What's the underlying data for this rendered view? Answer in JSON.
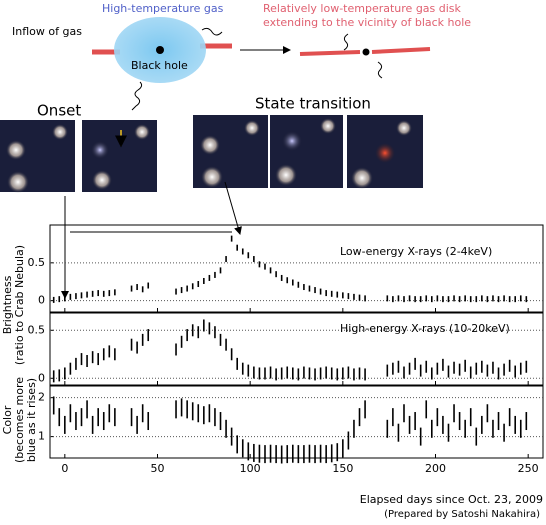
{
  "diagram": {
    "inflow_label": "Inflow of gas",
    "hot_gas_label": "High-temperature gas",
    "black_hole_label": "Black hole",
    "disk_label": [
      "Relatively low-temperature gas disk",
      "extending to the vicinity of black hole"
    ],
    "onset_label": "Onset",
    "transition_label": "State transition"
  },
  "chart_data": [
    {
      "type": "scatter",
      "ylabel": [
        "Brightness",
        "(ratio to Crab Nebula)"
      ],
      "annotation": "Low-energy X-rays  (2-4keV)",
      "xlim": [
        -8,
        258
      ],
      "ylim": [
        -0.15,
        1.0
      ],
      "yticks": [
        0,
        0.5
      ],
      "grid": true,
      "color": "#000000",
      "x": [
        -6,
        -3,
        0,
        3,
        6,
        9,
        12,
        15,
        18,
        21,
        24,
        27,
        36,
        39,
        42,
        45,
        60,
        63,
        66,
        69,
        72,
        75,
        78,
        81,
        84,
        87,
        90,
        93,
        96,
        99,
        102,
        105,
        108,
        111,
        114,
        117,
        120,
        123,
        126,
        129,
        132,
        135,
        138,
        141,
        144,
        147,
        150,
        153,
        156,
        159,
        162,
        174,
        177,
        180,
        183,
        186,
        189,
        192,
        195,
        198,
        201,
        204,
        207,
        210,
        213,
        216,
        219,
        222,
        225,
        228,
        231,
        234,
        237,
        240,
        243,
        246,
        249
      ],
      "values": [
        0.01,
        0.02,
        0.03,
        0.05,
        0.06,
        0.07,
        0.08,
        0.09,
        0.1,
        0.09,
        0.1,
        0.11,
        0.16,
        0.18,
        0.15,
        0.2,
        0.12,
        0.14,
        0.16,
        0.19,
        0.22,
        0.26,
        0.3,
        0.34,
        0.4,
        0.55,
        0.82,
        0.7,
        0.65,
        0.6,
        0.55,
        0.48,
        0.45,
        0.4,
        0.35,
        0.3,
        0.27,
        0.24,
        0.21,
        0.18,
        0.16,
        0.14,
        0.12,
        0.1,
        0.09,
        0.08,
        0.07,
        0.06,
        0.05,
        0.04,
        0.03,
        0.03,
        0.02,
        0.03,
        0.02,
        0.03,
        0.02,
        0.02,
        0.03,
        0.02,
        0.03,
        0.02,
        0.02,
        0.03,
        0.02,
        0.03,
        0.02,
        0.02,
        0.03,
        0.02,
        0.03,
        0.02,
        0.03,
        0.02,
        0.02,
        0.03,
        0.02
      ]
    },
    {
      "type": "scatter",
      "annotation": "High-energy X-rays  (10-20keV)",
      "xlim": [
        -8,
        258
      ],
      "ylim": [
        -0.07,
        0.68
      ],
      "yticks": [
        0,
        0.5
      ],
      "grid": true,
      "color": "#000000",
      "x": [
        -6,
        -3,
        0,
        3,
        6,
        9,
        12,
        15,
        18,
        21,
        24,
        27,
        36,
        39,
        42,
        45,
        60,
        63,
        66,
        69,
        72,
        75,
        78,
        81,
        84,
        87,
        90,
        93,
        96,
        99,
        102,
        105,
        108,
        111,
        114,
        117,
        120,
        123,
        126,
        129,
        132,
        135,
        138,
        141,
        144,
        147,
        150,
        153,
        156,
        159,
        162,
        174,
        177,
        180,
        183,
        186,
        189,
        192,
        195,
        198,
        201,
        204,
        207,
        210,
        213,
        216,
        219,
        222,
        225,
        228,
        231,
        234,
        237,
        240,
        243,
        246,
        249
      ],
      "values": [
        0.02,
        0.03,
        0.05,
        0.1,
        0.15,
        0.2,
        0.18,
        0.22,
        0.2,
        0.25,
        0.28,
        0.25,
        0.35,
        0.32,
        0.4,
        0.45,
        0.3,
        0.38,
        0.45,
        0.5,
        0.48,
        0.55,
        0.52,
        0.48,
        0.4,
        0.35,
        0.25,
        0.15,
        0.1,
        0.08,
        0.06,
        0.05,
        0.05,
        0.06,
        0.04,
        0.05,
        0.06,
        0.05,
        0.04,
        0.06,
        0.05,
        0.04,
        0.05,
        0.06,
        0.05,
        0.04,
        0.05,
        0.06,
        0.04,
        0.05,
        0.04,
        0.08,
        0.1,
        0.12,
        0.06,
        0.1,
        0.15,
        0.08,
        0.12,
        0.05,
        0.1,
        0.14,
        0.07,
        0.11,
        0.09,
        0.13,
        0.06,
        0.1,
        0.12,
        0.08,
        0.11,
        0.05,
        0.09,
        0.13,
        0.07,
        0.1,
        0.12
      ]
    },
    {
      "type": "scatter",
      "ylabel": [
        "Color",
        "(becomes more",
        "blue as it rises)"
      ],
      "xlabel": "Elapsed days since Oct. 23, 2009",
      "credit": "(Prepared by Satoshi Nakahira)",
      "xlim": [
        -8,
        258
      ],
      "xticks": [
        0,
        50,
        100,
        150,
        200,
        250
      ],
      "ylim": [
        0.45,
        2.3
      ],
      "yticks": [
        1,
        2
      ],
      "grid": true,
      "color": "#000000",
      "x": [
        -6,
        -3,
        0,
        3,
        6,
        9,
        12,
        15,
        18,
        21,
        24,
        27,
        36,
        39,
        42,
        45,
        60,
        63,
        66,
        69,
        72,
        75,
        78,
        81,
        84,
        87,
        90,
        93,
        96,
        99,
        102,
        105,
        108,
        111,
        114,
        117,
        120,
        123,
        126,
        129,
        132,
        135,
        138,
        141,
        144,
        147,
        150,
        153,
        156,
        159,
        162,
        174,
        177,
        180,
        183,
        186,
        189,
        192,
        195,
        198,
        201,
        204,
        207,
        210,
        213,
        216,
        219,
        222,
        225,
        228,
        231,
        234,
        237,
        240,
        243,
        246,
        249
      ],
      "values": [
        1.8,
        1.5,
        1.3,
        1.6,
        1.4,
        1.5,
        1.7,
        1.3,
        1.5,
        1.4,
        1.6,
        1.5,
        1.5,
        1.3,
        1.6,
        1.4,
        1.7,
        1.75,
        1.7,
        1.65,
        1.6,
        1.55,
        1.6,
        1.5,
        1.4,
        1.2,
        1.0,
        0.8,
        0.7,
        0.62,
        0.58,
        0.56,
        0.55,
        0.56,
        0.55,
        0.54,
        0.55,
        0.56,
        0.55,
        0.55,
        0.56,
        0.55,
        0.56,
        0.55,
        0.57,
        0.6,
        0.7,
        0.9,
        1.2,
        1.5,
        1.7,
        1.2,
        1.5,
        1.1,
        1.6,
        1.3,
        1.4,
        1.0,
        1.7,
        1.2,
        1.5,
        1.3,
        1.1,
        1.6,
        1.4,
        1.2,
        1.5,
        1.0,
        1.3,
        1.6,
        1.2,
        1.4,
        1.1,
        1.5,
        1.3,
        1.2,
        1.4
      ]
    }
  ]
}
